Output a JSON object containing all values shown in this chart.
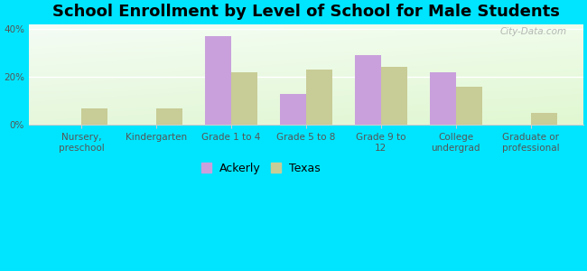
{
  "title": "School Enrollment by Level of School for Male Students",
  "categories": [
    "Nursery,\npreschool",
    "Kindergarten",
    "Grade 1 to 4",
    "Grade 5 to 8",
    "Grade 9 to\n12",
    "College\nundergrad",
    "Graduate or\nprofessional"
  ],
  "ackerly": [
    0,
    0,
    37,
    13,
    29,
    22,
    0
  ],
  "texas": [
    7,
    7,
    22,
    23,
    24,
    16,
    5
  ],
  "ackerly_color": "#c9a0dc",
  "texas_color": "#c8cc96",
  "bg_outer": "#00e5ff",
  "ylabel_ticks": [
    "0%",
    "20%",
    "40%"
  ],
  "yticks": [
    0,
    20,
    40
  ],
  "ylim": [
    0,
    42
  ],
  "bar_width": 0.35,
  "title_fontsize": 13,
  "tick_fontsize": 7.5,
  "legend_fontsize": 9,
  "watermark": "City-Data.com"
}
